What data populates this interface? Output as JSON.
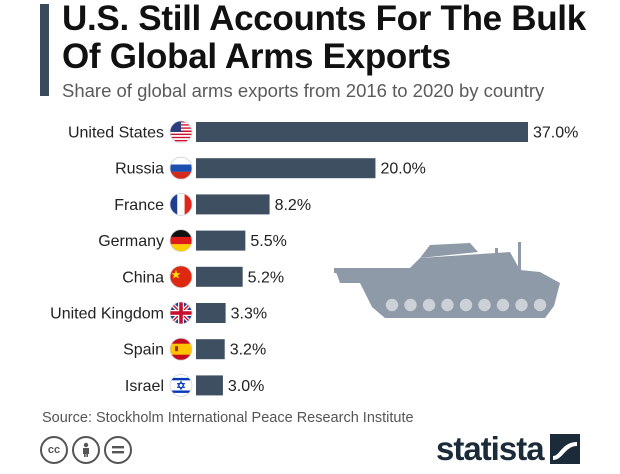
{
  "title": "U.S. Still Accounts For The Bulk Of Global Arms Exports",
  "subtitle": "Share of global arms exports from 2016 to 2020 by country",
  "source": "Source: Stockholm International Peace Research Institute",
  "brand": "statista",
  "colors": {
    "bar": "#3f4f62",
    "accent": "#3a4a5c",
    "tank": "#8e9aa8"
  },
  "chart_data": {
    "type": "bar",
    "orientation": "horizontal",
    "unit": "%",
    "categories": [
      "United States",
      "Russia",
      "France",
      "Germany",
      "China",
      "United Kingdom",
      "Spain",
      "Israel"
    ],
    "values": [
      37.0,
      20.0,
      8.2,
      5.5,
      5.2,
      3.3,
      3.2,
      3.0
    ],
    "value_labels": [
      "37.0%",
      "20.0%",
      "8.2%",
      "5.5%",
      "5.2%",
      "3.3%",
      "3.2%",
      "3.0%"
    ],
    "flags": [
      "us-flag-icon",
      "russia-flag-icon",
      "france-flag-icon",
      "germany-flag-icon",
      "china-flag-icon",
      "uk-flag-icon",
      "spain-flag-icon",
      "israel-flag-icon"
    ],
    "xlim": [
      0,
      37.0
    ],
    "grid": false,
    "legend": "none"
  }
}
